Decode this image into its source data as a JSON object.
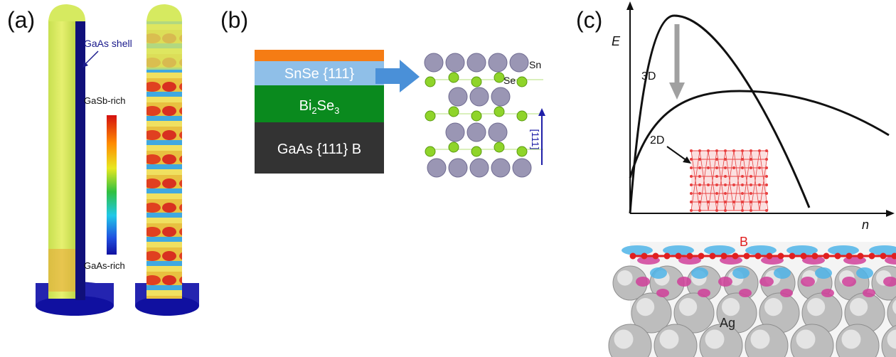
{
  "panel_a": {
    "label": "(a)",
    "shell_label": "GaAs shell",
    "colorbar_top_label": "GaSb-rich",
    "colorbar_bottom_label": "GaAs-rich"
  },
  "panel_b": {
    "label": "(b)",
    "layers": [
      {
        "text": "SnSe {111}",
        "color": "#8fbfe8"
      },
      {
        "text": "Bi",
        "sub": "2",
        "text2": "Se",
        "sub2": "3",
        "color": "#0a8a1e"
      },
      {
        "text": "GaAs {111} B",
        "color": "#333333"
      }
    ],
    "top_layer_color": "#f57c14",
    "atom_sn_label": "Sn",
    "atom_se_label": "Se",
    "direction_label": "[111]",
    "colors": {
      "sn": "#9a96b4",
      "se": "#8fd42a",
      "arrow": "#4a90d8",
      "direction": "#1f1fa8"
    }
  },
  "panel_c": {
    "label": "(c)",
    "y_axis_label": "E",
    "x_axis_label": "n",
    "curve_3d_label": "3D",
    "curve_2d_label": "2D",
    "boron_label": "B",
    "silver_label": "Ag",
    "colors": {
      "boron": "#e02020",
      "lattice": "#e84040",
      "down_arrow": "#a0a0a0"
    }
  }
}
